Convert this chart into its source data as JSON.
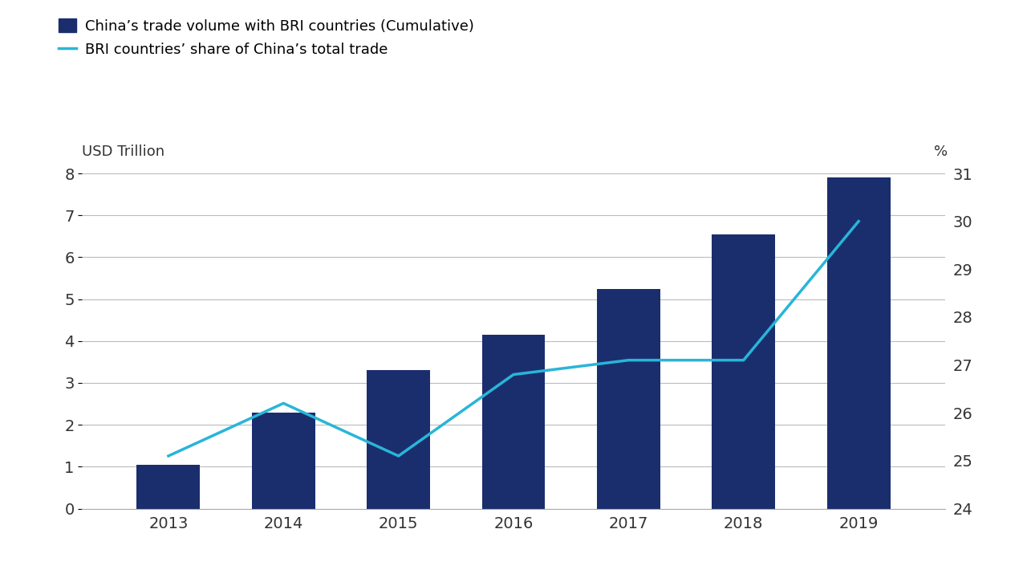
{
  "years": [
    2013,
    2014,
    2015,
    2016,
    2017,
    2018,
    2019
  ],
  "bar_values": [
    1.05,
    2.3,
    3.3,
    4.15,
    5.25,
    6.55,
    7.9
  ],
  "line_values": [
    25.1,
    26.2,
    25.1,
    26.8,
    27.1,
    27.1,
    30.0
  ],
  "bar_color": "#1a2e6e",
  "line_color": "#29b5d8",
  "legend_bar": "China’s trade volume with BRI countries (Cumulative)",
  "legend_line": "BRI countries’ share of China’s total trade",
  "ylabel_left": "USD Trillion",
  "ylabel_right": "%",
  "ylim_left": [
    0,
    8
  ],
  "ylim_right": [
    24,
    31
  ],
  "yticks_left": [
    0,
    1,
    2,
    3,
    4,
    5,
    6,
    7,
    8
  ],
  "yticks_right": [
    24,
    25,
    26,
    27,
    28,
    29,
    30,
    31
  ],
  "background_color": "#ffffff",
  "grid_color": "#bbbbbb",
  "tick_color": "#333333",
  "bar_width": 0.55
}
